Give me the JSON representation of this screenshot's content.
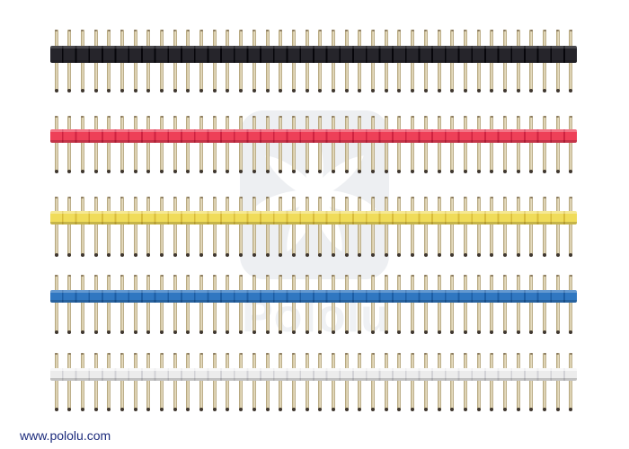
{
  "page": {
    "background_color": "#ffffff",
    "description": "Product photo of five 0.1 inch breakaway male header strips in assorted colors"
  },
  "branding": {
    "website": "www.pololu.com",
    "website_color": "#1c2b7c"
  },
  "watermark": {
    "logo_name": "pololu-star-logo",
    "logo_text": "Pololu",
    "box_color": "#edeff2",
    "star_color": "#ffffff",
    "text_color": "#eff1f4"
  },
  "product": {
    "name": "breakaway-male-header-strips",
    "pins_per_strip": 40,
    "pin_color": "#d9cdaa",
    "pin_light_color": "#efe6cc",
    "pin_edge_color": "#a8986f",
    "pin_tip_color": "#3f3730",
    "pin_top_tip_color": "#8a7a5f",
    "strips": [
      {
        "label": "black",
        "plastic_color": "#26252b",
        "divider_color": "#07060b",
        "highlight_color": "rgba(255,255,255,0.16)"
      },
      {
        "label": "red",
        "plastic_color": "#ee4058",
        "divider_color": "#cf2240",
        "highlight_color": "rgba(255,255,255,0.28)"
      },
      {
        "label": "yellow",
        "plastic_color": "#f0dc5a",
        "divider_color": "#d9bc3a",
        "highlight_color": "rgba(255,255,255,0.35)"
      },
      {
        "label": "blue",
        "plastic_color": "#3077c1",
        "divider_color": "#1c5da4",
        "highlight_color": "rgba(255,255,255,0.25)"
      },
      {
        "label": "white",
        "plastic_color": "#ececec",
        "divider_color": "#d2d2d6",
        "highlight_color": "rgba(255,255,255,0.65)"
      }
    ]
  }
}
